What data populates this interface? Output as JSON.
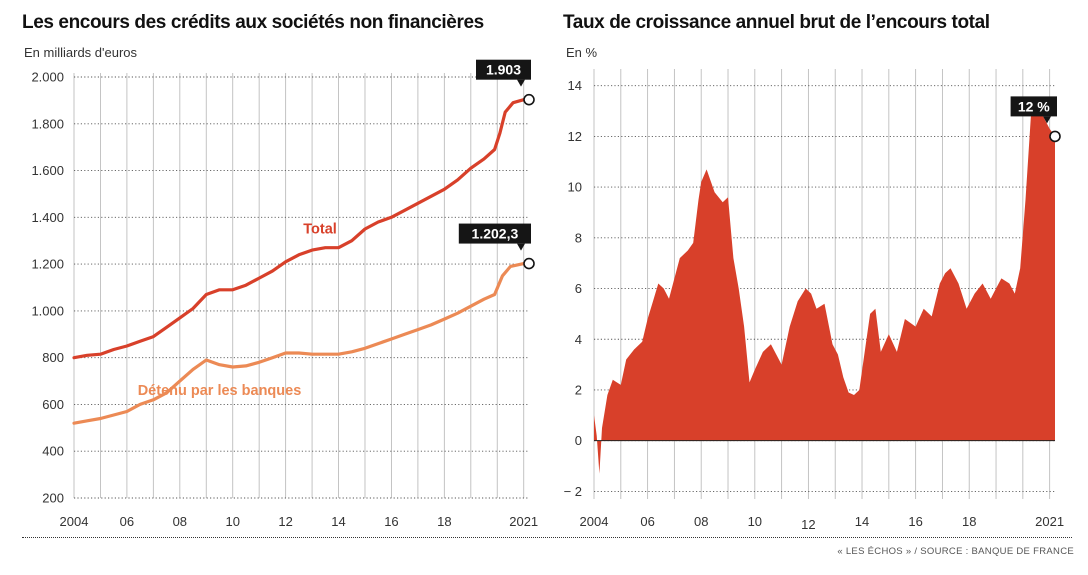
{
  "chart_data": [
    {
      "type": "line",
      "title": "Les encours des crédits aux sociétés non financières",
      "subtitle": "En milliards d'euros",
      "x_tick_labels": [
        "2004",
        "06",
        "08",
        "10",
        "12",
        "14",
        "16",
        "18",
        "2021"
      ],
      "x_tick_years": [
        2004,
        2006,
        2008,
        2010,
        2012,
        2014,
        2016,
        2018,
        2021
      ],
      "x_range": [
        2004,
        2021.2
      ],
      "y_ticks": [
        200,
        400,
        600,
        800,
        1000,
        1200,
        1400,
        1600,
        1800,
        2000
      ],
      "y_tick_labels": [
        "200",
        "400",
        "600",
        "800",
        "1.000",
        "1.200",
        "1.400",
        "1.600",
        "1.800",
        "2.000"
      ],
      "ylim": [
        200,
        2000
      ],
      "grid": true,
      "series": [
        {
          "name": "Total",
          "color": "#d8402a",
          "x": [
            2004,
            2004.5,
            2005,
            2005.5,
            2006,
            2006.5,
            2007,
            2007.5,
            2008,
            2008.5,
            2009,
            2009.5,
            2010,
            2010.5,
            2011,
            2011.5,
            2012,
            2012.5,
            2013,
            2013.5,
            2014,
            2014.5,
            2015,
            2015.5,
            2016,
            2016.5,
            2017,
            2017.5,
            2018,
            2018.5,
            2019,
            2019.5,
            2019.9,
            2020.1,
            2020.3,
            2020.6,
            2021,
            2021.2
          ],
          "values": [
            800,
            810,
            815,
            835,
            850,
            870,
            890,
            930,
            970,
            1010,
            1070,
            1090,
            1090,
            1110,
            1140,
            1170,
            1210,
            1240,
            1260,
            1270,
            1270,
            1300,
            1350,
            1380,
            1400,
            1430,
            1460,
            1490,
            1520,
            1560,
            1610,
            1650,
            1690,
            1760,
            1850,
            1890,
            1903,
            1903
          ]
        },
        {
          "name": "Détenu par les banques",
          "color": "#ec8a55",
          "x": [
            2004,
            2004.5,
            2005,
            2005.5,
            2006,
            2006.5,
            2007,
            2007.5,
            2008,
            2008.5,
            2009,
            2009.5,
            2010,
            2010.5,
            2011,
            2011.5,
            2012,
            2012.5,
            2013,
            2013.5,
            2014,
            2014.5,
            2015,
            2015.5,
            2016,
            2016.5,
            2017,
            2017.5,
            2018,
            2018.5,
            2019,
            2019.5,
            2019.9,
            2020.2,
            2020.5,
            2021,
            2021.2
          ],
          "values": [
            520,
            530,
            540,
            555,
            570,
            600,
            620,
            650,
            700,
            750,
            790,
            770,
            760,
            765,
            780,
            800,
            820,
            820,
            815,
            815,
            815,
            825,
            840,
            860,
            880,
            900,
            920,
            940,
            965,
            990,
            1020,
            1050,
            1070,
            1150,
            1190,
            1202.3,
            1202.3
          ]
        }
      ],
      "annotations": [
        {
          "text": "Total",
          "x": 2013.3,
          "y": 1330,
          "color": "#d8402a"
        },
        {
          "text": "Détenu par les banques",
          "x": 2009.5,
          "y": 640,
          "color": "#ec8a55"
        }
      ],
      "end_labels": [
        {
          "text": "1.903",
          "x": 2021.2,
          "y": 1903
        },
        {
          "text": "1.202,3",
          "x": 2021.2,
          "y": 1202.3
        }
      ]
    },
    {
      "type": "area",
      "title": "Taux de croissance annuel brut de l’encours total",
      "subtitle": "En %",
      "x_tick_labels": [
        "2004",
        "06",
        "08",
        "10",
        "12",
        "14",
        "16",
        "18",
        "2021"
      ],
      "x_tick_years": [
        2004,
        2006,
        2008,
        2010,
        2012,
        2014,
        2016,
        2018,
        2021
      ],
      "x_range": [
        2004,
        2021.2
      ],
      "y_ticks": [
        -2,
        0,
        2,
        4,
        6,
        8,
        10,
        12,
        14
      ],
      "y_tick_labels": [
        "− 2",
        "0",
        "2",
        "4",
        "6",
        "8",
        "10",
        "12",
        "14"
      ],
      "ylim": [
        -2.3,
        14.5
      ],
      "grid": true,
      "series": [
        {
          "name": "",
          "color": "#d8402a",
          "x": [
            2004,
            2004.1,
            2004.2,
            2004.3,
            2004.5,
            2004.7,
            2005,
            2005.2,
            2005.5,
            2005.8,
            2006,
            2006.2,
            2006.4,
            2006.6,
            2006.8,
            2007,
            2007.2,
            2007.5,
            2007.7,
            2007.9,
            2008,
            2008.2,
            2008.5,
            2008.8,
            2009,
            2009.2,
            2009.4,
            2009.6,
            2009.8,
            2010,
            2010.3,
            2010.6,
            2011,
            2011.3,
            2011.6,
            2011.9,
            2012.1,
            2012.3,
            2012.6,
            2012.9,
            2013.1,
            2013.3,
            2013.5,
            2013.7,
            2013.9,
            2014.1,
            2014.3,
            2014.5,
            2014.7,
            2015,
            2015.3,
            2015.6,
            2016,
            2016.3,
            2016.6,
            2016.9,
            2017.1,
            2017.3,
            2017.6,
            2017.9,
            2018.2,
            2018.5,
            2018.8,
            2019,
            2019.2,
            2019.5,
            2019.7,
            2019.9,
            2020.1,
            2020.3,
            2020.5,
            2020.7,
            2020.9,
            2021,
            2021.2
          ],
          "values": [
            1.0,
            0.2,
            -1.3,
            0.5,
            1.8,
            2.4,
            2.2,
            3.2,
            3.6,
            3.9,
            4.8,
            5.5,
            6.2,
            6.0,
            5.6,
            6.4,
            7.2,
            7.5,
            7.8,
            9.5,
            10.2,
            10.7,
            9.8,
            9.4,
            9.6,
            7.2,
            6.0,
            4.5,
            2.3,
            2.8,
            3.5,
            3.8,
            3.0,
            4.5,
            5.5,
            6.0,
            5.8,
            5.2,
            5.4,
            3.8,
            3.4,
            2.5,
            1.9,
            1.8,
            2.0,
            3.5,
            5.0,
            5.2,
            3.5,
            4.2,
            3.5,
            4.8,
            4.5,
            5.2,
            4.9,
            6.2,
            6.6,
            6.8,
            6.2,
            5.2,
            5.8,
            6.2,
            5.6,
            6.0,
            6.4,
            6.2,
            5.8,
            6.8,
            9.5,
            12.8,
            13.2,
            12.9,
            12.5,
            12.3,
            12.0
          ]
        }
      ],
      "end_labels": [
        {
          "text": "12 %",
          "x": 2021.2,
          "y": 12
        }
      ]
    }
  ],
  "footer": {
    "text": "« LES ÉCHOS » / SOURCE : BANQUE DE FRANCE"
  }
}
